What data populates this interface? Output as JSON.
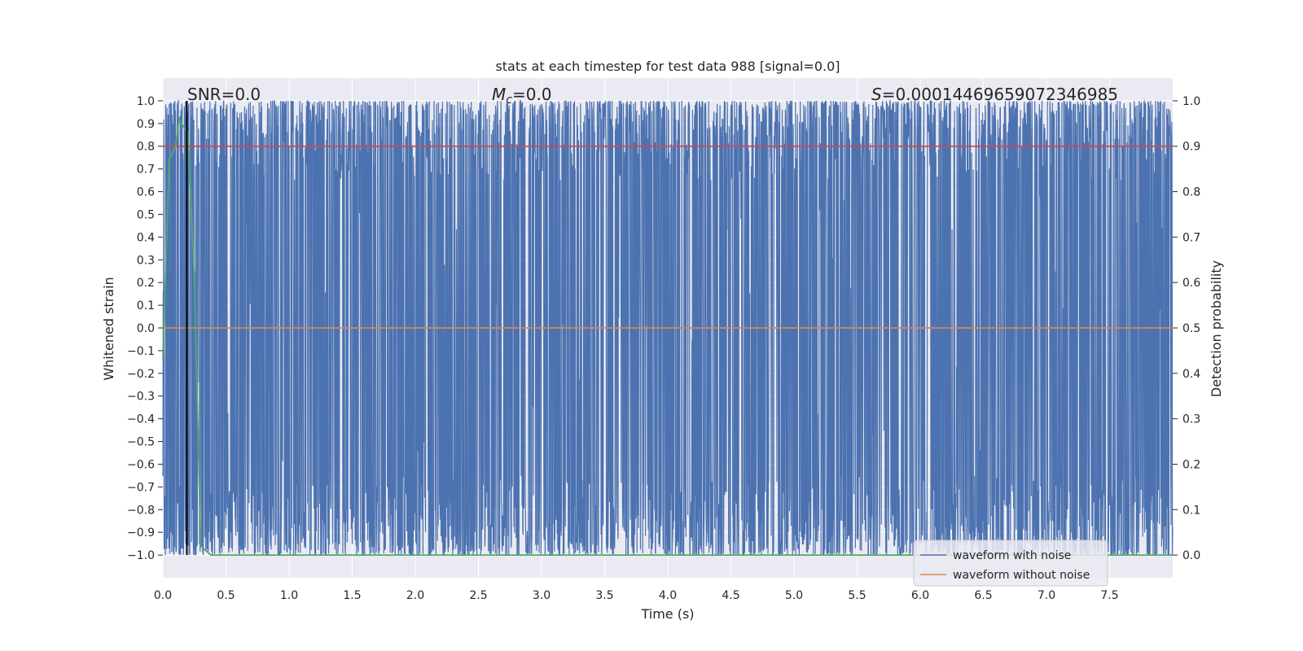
{
  "chart_data": {
    "type": "line",
    "title": "stats at each timestep for test data 988 [signal=0.0]",
    "xlabel": "Time (s)",
    "ylabel": "Whitened strain",
    "ylabel_right": "Detection probability",
    "xlim": [
      0.0,
      8.0
    ],
    "ylim": [
      -1.1,
      1.1
    ],
    "ylim_right": [
      -0.05,
      1.05
    ],
    "x_ticks": [
      0.0,
      0.5,
      1.0,
      1.5,
      2.0,
      2.5,
      3.0,
      3.5,
      4.0,
      4.5,
      5.0,
      5.5,
      6.0,
      6.5,
      7.0,
      7.5
    ],
    "x_tick_labels": [
      "0.0",
      "0.5",
      "1.0",
      "1.5",
      "2.0",
      "2.5",
      "3.0",
      "3.5",
      "4.0",
      "4.5",
      "5.0",
      "5.5",
      "6.0",
      "6.5",
      "7.0",
      "7.5"
    ],
    "y_ticks": [
      1.0,
      0.9,
      0.8,
      0.7,
      0.6,
      0.5,
      0.4,
      0.3,
      0.2,
      0.1,
      0.0,
      -0.1,
      -0.2,
      -0.3,
      -0.4,
      -0.5,
      -0.6,
      -0.7,
      -0.8,
      -0.9,
      -1.0
    ],
    "y_tick_labels": [
      "1.0",
      "0.9",
      "0.8",
      "0.7",
      "0.6",
      "0.5",
      "0.4",
      "0.3",
      "0.2",
      "0.1",
      "0.0",
      "−0.1",
      "−0.2",
      "−0.3",
      "−0.4",
      "−0.5",
      "−0.6",
      "−0.7",
      "−0.8",
      "−0.9",
      "−1.0"
    ],
    "y_right_ticks": [
      1.0,
      0.9,
      0.8,
      0.7,
      0.6,
      0.5,
      0.4,
      0.3,
      0.2,
      0.1,
      0.0
    ],
    "y_right_tick_labels": [
      "1.0",
      "0.9",
      "0.8",
      "0.7",
      "0.6",
      "0.5",
      "0.4",
      "0.3",
      "0.2",
      "0.1",
      "0.0"
    ],
    "grid": true,
    "annotations": [
      {
        "text_prefix": "SNR",
        "text_value": "=0.0"
      },
      {
        "text_prefix": "M",
        "text_sub": "c",
        "text_value": "=0.0"
      },
      {
        "text_prefix": "S",
        "text_value": "=0.00014469659072346985"
      }
    ],
    "series": [
      {
        "name": "waveform with noise",
        "color": "#4c72b0",
        "kind": "noise",
        "axis": "left",
        "approx_envelope": [
          -1.0,
          1.0
        ]
      },
      {
        "name": "waveform without noise",
        "color": "#dd8452",
        "axis": "left",
        "x": [
          0.0,
          8.0
        ],
        "y": [
          0.0,
          0.0
        ]
      },
      {
        "color": "#55a868",
        "axis": "right",
        "x": [
          0.0,
          0.05,
          0.1,
          0.13,
          0.17,
          0.2,
          0.25,
          0.3,
          0.38,
          8.0
        ],
        "y": [
          0.43,
          0.87,
          0.9,
          0.96,
          0.94,
          0.93,
          0.6,
          0.02,
          0.0,
          0.0
        ]
      },
      {
        "color": "#c44e52",
        "axis": "right",
        "x": [
          0.0,
          8.0
        ],
        "y": [
          0.9,
          0.9
        ]
      },
      {
        "color": "#000000",
        "axis": "left",
        "kind": "vline",
        "x": 0.19,
        "y": [
          -1.0,
          1.0
        ]
      }
    ],
    "legend": {
      "placement": "lower-right",
      "entries": [
        "waveform with noise",
        "waveform without noise"
      ]
    }
  },
  "colors": {
    "plot_bg": "#eaeaf2",
    "grid": "#ffffff",
    "noise": "#4c72b0",
    "clean": "#dd8452",
    "prob": "#55a868",
    "threshold": "#c44e52"
  }
}
